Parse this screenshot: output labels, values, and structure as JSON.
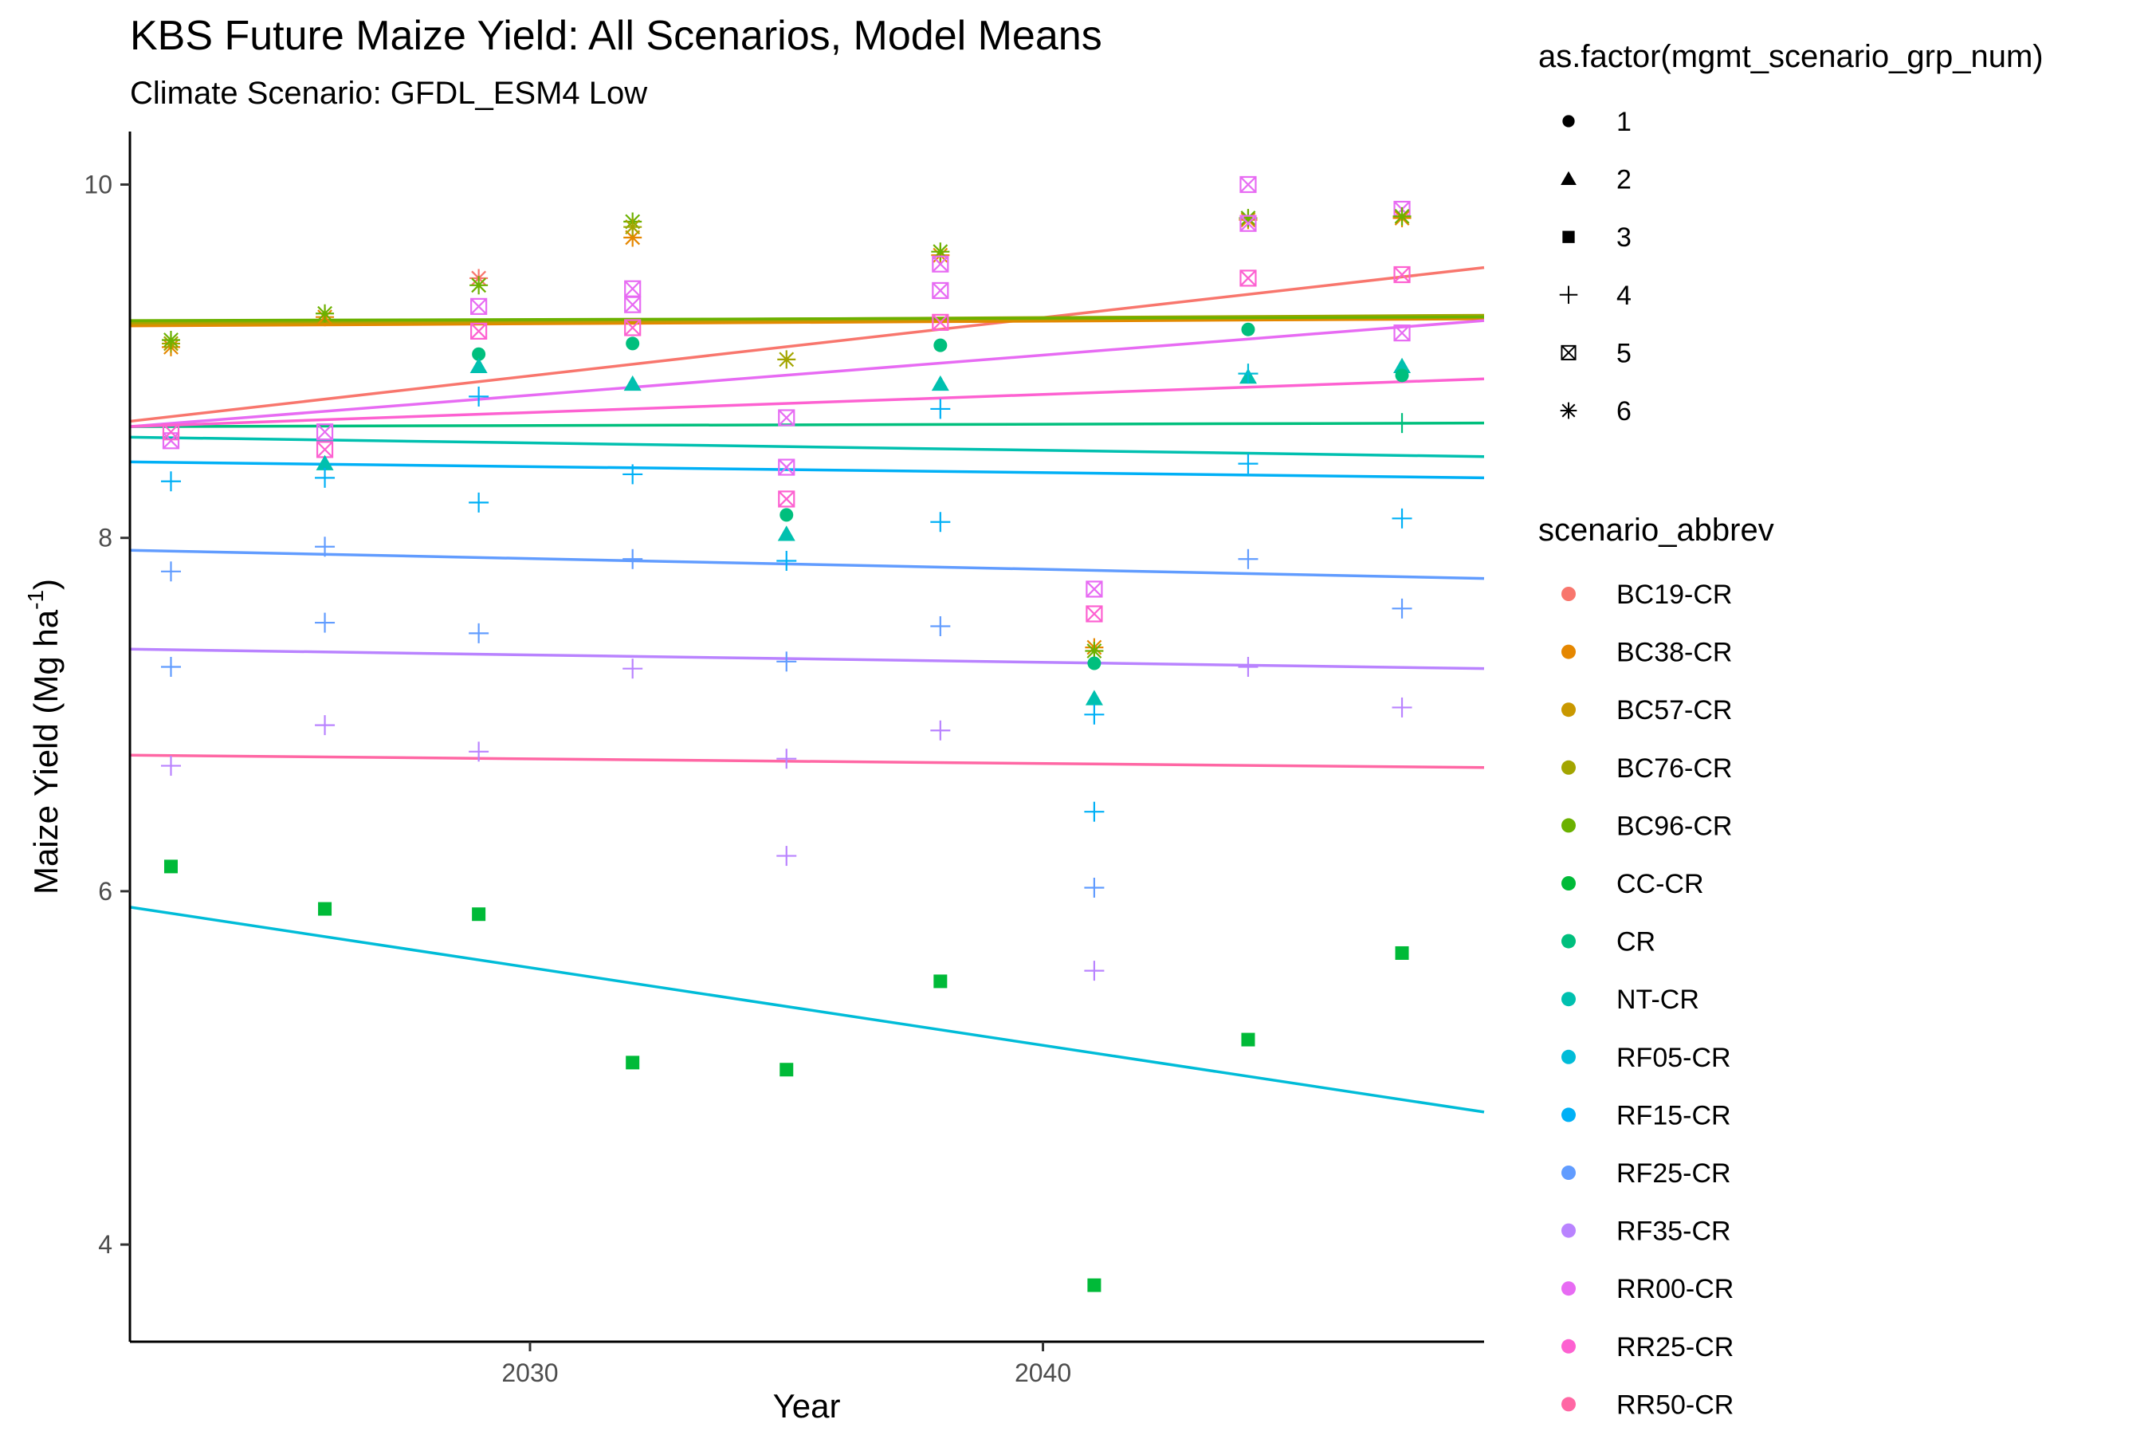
{
  "chart_data": {
    "type": "scatter",
    "title": "KBS  Future Maize Yield: All Scenarios, Model Means",
    "subtitle": "Climate Scenario: GFDL_ESM4 Low",
    "xlabel": "Year",
    "ylabel_main": "Maize Yield (Mg ha",
    "ylabel_sup": "-1",
    "ylabel_close": ")",
    "xlim": [
      2022.2,
      2048.6
    ],
    "ylim": [
      3.45,
      10.3
    ],
    "xticks": [
      2030,
      2040
    ],
    "yticks": [
      4,
      6,
      8,
      10
    ],
    "grid": false,
    "legend_position": "right",
    "shape_legend": {
      "title": "as.factor(mgmt_scenario_grp_num)",
      "items": [
        {
          "label": "1",
          "shape": "circle"
        },
        {
          "label": "2",
          "shape": "triangle"
        },
        {
          "label": "3",
          "shape": "square"
        },
        {
          "label": "4",
          "shape": "plus"
        },
        {
          "label": "5",
          "shape": "boxx"
        },
        {
          "label": "6",
          "shape": "asterisk"
        }
      ]
    },
    "color_legend": {
      "title": "scenario_abbrev",
      "items": [
        {
          "label": "BC19-CR",
          "color": "#F8766D"
        },
        {
          "label": "BC38-CR",
          "color": "#E58700"
        },
        {
          "label": "BC57-CR",
          "color": "#C99800"
        },
        {
          "label": "BC76-CR",
          "color": "#A3A500"
        },
        {
          "label": "BC96-CR",
          "color": "#6BB100"
        },
        {
          "label": "CC-CR",
          "color": "#00BA38"
        },
        {
          "label": "CR",
          "color": "#00BF7D"
        },
        {
          "label": "NT-CR",
          "color": "#00C0AF"
        },
        {
          "label": "RF05-CR",
          "color": "#00BCD8"
        },
        {
          "label": "RF15-CR",
          "color": "#00B0F6"
        },
        {
          "label": "RF25-CR",
          "color": "#619CFF"
        },
        {
          "label": "RF35-CR",
          "color": "#B983FF"
        },
        {
          "label": "RR00-CR",
          "color": "#E76BF3"
        },
        {
          "label": "RR25-CR",
          "color": "#FD61D1"
        },
        {
          "label": "RR50-CR",
          "color": "#FF67A4"
        }
      ]
    },
    "trend_lines": [
      {
        "color": "#F8766D",
        "x": [
          2022.2,
          2048.6
        ],
        "y": [
          8.66,
          9.53
        ]
      },
      {
        "color": "#E58700",
        "x": [
          2022.2,
          2048.6
        ],
        "y": [
          9.2,
          9.24
        ]
      },
      {
        "color": "#C99800",
        "x": [
          2022.2,
          2048.6
        ],
        "y": [
          9.21,
          9.25
        ]
      },
      {
        "color": "#A3A500",
        "x": [
          2022.2,
          2048.6
        ],
        "y": [
          9.22,
          9.26
        ]
      },
      {
        "color": "#6BB100",
        "x": [
          2022.2,
          2048.6
        ],
        "y": [
          9.23,
          9.25
        ]
      },
      {
        "color": "#00BCD8",
        "x": [
          2022.2,
          2048.6
        ],
        "y": [
          5.91,
          4.75
        ]
      },
      {
        "color": "#00BF7D",
        "x": [
          2022.2,
          2048.6
        ],
        "y": [
          8.63,
          8.65
        ]
      },
      {
        "color": "#00C0AF",
        "x": [
          2022.2,
          2048.6
        ],
        "y": [
          8.57,
          8.46
        ]
      },
      {
        "color": "#00B0F6",
        "x": [
          2022.2,
          2048.6
        ],
        "y": [
          8.43,
          8.34
        ]
      },
      {
        "color": "#619CFF",
        "x": [
          2022.2,
          2048.6
        ],
        "y": [
          7.93,
          7.77
        ]
      },
      {
        "color": "#B983FF",
        "x": [
          2022.2,
          2048.6
        ],
        "y": [
          7.37,
          7.26
        ]
      },
      {
        "color": "#E76BF3",
        "x": [
          2022.2,
          2048.6
        ],
        "y": [
          8.63,
          9.23
        ]
      },
      {
        "color": "#FD61D1",
        "x": [
          2022.2,
          2048.6
        ],
        "y": [
          8.63,
          8.9
        ]
      },
      {
        "color": "#FF67A4",
        "x": [
          2022.2,
          2048.6
        ],
        "y": [
          6.77,
          6.7
        ]
      }
    ],
    "points": [
      {
        "x": 2023,
        "y": 9.08,
        "shape": "asterisk",
        "color": "#E58700"
      },
      {
        "x": 2023,
        "y": 9.1,
        "shape": "asterisk",
        "color": "#A3A500"
      },
      {
        "x": 2023,
        "y": 9.12,
        "shape": "asterisk",
        "color": "#6BB100"
      },
      {
        "x": 2023,
        "y": 8.55,
        "shape": "boxx",
        "color": "#E76BF3"
      },
      {
        "x": 2023,
        "y": 8.6,
        "shape": "boxx",
        "color": "#FD61D1"
      },
      {
        "x": 2023,
        "y": 8.32,
        "shape": "plus",
        "color": "#00B0F6"
      },
      {
        "x": 2023,
        "y": 7.81,
        "shape": "plus",
        "color": "#619CFF"
      },
      {
        "x": 2023,
        "y": 7.27,
        "shape": "plus",
        "color": "#619CFF"
      },
      {
        "x": 2023,
        "y": 6.71,
        "shape": "plus",
        "color": "#B983FF"
      },
      {
        "x": 2023,
        "y": 6.14,
        "shape": "square",
        "color": "#00BA38"
      },
      {
        "x": 2026,
        "y": 9.25,
        "shape": "asterisk",
        "color": "#E58700"
      },
      {
        "x": 2026,
        "y": 9.27,
        "shape": "asterisk",
        "color": "#6BB100"
      },
      {
        "x": 2026,
        "y": 8.6,
        "shape": "boxx",
        "color": "#E76BF3"
      },
      {
        "x": 2026,
        "y": 8.5,
        "shape": "boxx",
        "color": "#FD61D1"
      },
      {
        "x": 2026,
        "y": 8.42,
        "shape": "triangle",
        "color": "#00C0AF"
      },
      {
        "x": 2026,
        "y": 8.34,
        "shape": "plus",
        "color": "#00B0F6"
      },
      {
        "x": 2026,
        "y": 7.95,
        "shape": "plus",
        "color": "#619CFF"
      },
      {
        "x": 2026,
        "y": 7.52,
        "shape": "plus",
        "color": "#619CFF"
      },
      {
        "x": 2026,
        "y": 6.94,
        "shape": "plus",
        "color": "#B983FF"
      },
      {
        "x": 2026,
        "y": 5.9,
        "shape": "square",
        "color": "#00BA38"
      },
      {
        "x": 2029,
        "y": 9.47,
        "shape": "asterisk",
        "color": "#F8766D"
      },
      {
        "x": 2029,
        "y": 9.43,
        "shape": "asterisk",
        "color": "#6BB100"
      },
      {
        "x": 2029,
        "y": 9.31,
        "shape": "boxx",
        "color": "#E76BF3"
      },
      {
        "x": 2029,
        "y": 9.17,
        "shape": "boxx",
        "color": "#FD61D1"
      },
      {
        "x": 2029,
        "y": 9.04,
        "shape": "circle",
        "color": "#00BF7D"
      },
      {
        "x": 2029,
        "y": 8.97,
        "shape": "triangle",
        "color": "#00C0AF"
      },
      {
        "x": 2029,
        "y": 8.8,
        "shape": "plus",
        "color": "#00B0F6"
      },
      {
        "x": 2029,
        "y": 8.2,
        "shape": "plus",
        "color": "#00B0F6"
      },
      {
        "x": 2029,
        "y": 7.46,
        "shape": "plus",
        "color": "#619CFF"
      },
      {
        "x": 2029,
        "y": 6.79,
        "shape": "plus",
        "color": "#B983FF"
      },
      {
        "x": 2029,
        "y": 5.87,
        "shape": "square",
        "color": "#00BA38"
      },
      {
        "x": 2032,
        "y": 9.79,
        "shape": "asterisk",
        "color": "#6BB100"
      },
      {
        "x": 2032,
        "y": 9.7,
        "shape": "asterisk",
        "color": "#E58700"
      },
      {
        "x": 2032,
        "y": 9.76,
        "shape": "asterisk",
        "color": "#A3A500"
      },
      {
        "x": 2032,
        "y": 9.41,
        "shape": "boxx",
        "color": "#E76BF3"
      },
      {
        "x": 2032,
        "y": 9.32,
        "shape": "boxx",
        "color": "#E76BF3"
      },
      {
        "x": 2032,
        "y": 9.19,
        "shape": "boxx",
        "color": "#FD61D1"
      },
      {
        "x": 2032,
        "y": 9.1,
        "shape": "circle",
        "color": "#00BF7D"
      },
      {
        "x": 2032,
        "y": 8.87,
        "shape": "triangle",
        "color": "#00C0AF"
      },
      {
        "x": 2032,
        "y": 8.36,
        "shape": "plus",
        "color": "#00B0F6"
      },
      {
        "x": 2032,
        "y": 7.88,
        "shape": "plus",
        "color": "#619CFF"
      },
      {
        "x": 2032,
        "y": 7.26,
        "shape": "plus",
        "color": "#B983FF"
      },
      {
        "x": 2032,
        "y": 5.03,
        "shape": "square",
        "color": "#00BA38"
      },
      {
        "x": 2035,
        "y": 9.01,
        "shape": "asterisk",
        "color": "#A3A500"
      },
      {
        "x": 2035,
        "y": 8.68,
        "shape": "boxx",
        "color": "#E76BF3"
      },
      {
        "x": 2035,
        "y": 8.4,
        "shape": "boxx",
        "color": "#E76BF3"
      },
      {
        "x": 2035,
        "y": 8.22,
        "shape": "boxx",
        "color": "#FD61D1"
      },
      {
        "x": 2035,
        "y": 8.13,
        "shape": "circle",
        "color": "#00BF7D"
      },
      {
        "x": 2035,
        "y": 8.02,
        "shape": "triangle",
        "color": "#00C0AF"
      },
      {
        "x": 2035,
        "y": 7.87,
        "shape": "plus",
        "color": "#00B0F6"
      },
      {
        "x": 2035,
        "y": 7.3,
        "shape": "plus",
        "color": "#619CFF"
      },
      {
        "x": 2035,
        "y": 6.75,
        "shape": "plus",
        "color": "#B983FF"
      },
      {
        "x": 2035,
        "y": 6.2,
        "shape": "plus",
        "color": "#B983FF"
      },
      {
        "x": 2035,
        "y": 4.99,
        "shape": "square",
        "color": "#00BA38"
      },
      {
        "x": 2038,
        "y": 9.6,
        "shape": "asterisk",
        "color": "#E58700"
      },
      {
        "x": 2038,
        "y": 9.62,
        "shape": "asterisk",
        "color": "#6BB100"
      },
      {
        "x": 2038,
        "y": 9.55,
        "shape": "boxx",
        "color": "#E76BF3"
      },
      {
        "x": 2038,
        "y": 9.4,
        "shape": "boxx",
        "color": "#E76BF3"
      },
      {
        "x": 2038,
        "y": 9.22,
        "shape": "boxx",
        "color": "#FD61D1"
      },
      {
        "x": 2038,
        "y": 9.09,
        "shape": "circle",
        "color": "#00BF7D"
      },
      {
        "x": 2038,
        "y": 8.87,
        "shape": "triangle",
        "color": "#00C0AF"
      },
      {
        "x": 2038,
        "y": 8.73,
        "shape": "plus",
        "color": "#00B0F6"
      },
      {
        "x": 2038,
        "y": 8.09,
        "shape": "plus",
        "color": "#00B0F6"
      },
      {
        "x": 2038,
        "y": 7.5,
        "shape": "plus",
        "color": "#619CFF"
      },
      {
        "x": 2038,
        "y": 6.91,
        "shape": "plus",
        "color": "#B983FF"
      },
      {
        "x": 2038,
        "y": 5.49,
        "shape": "square",
        "color": "#00BA38"
      },
      {
        "x": 2041,
        "y": 7.71,
        "shape": "boxx",
        "color": "#E76BF3"
      },
      {
        "x": 2041,
        "y": 7.57,
        "shape": "boxx",
        "color": "#FD61D1"
      },
      {
        "x": 2041,
        "y": 7.38,
        "shape": "asterisk",
        "color": "#E58700"
      },
      {
        "x": 2041,
        "y": 7.36,
        "shape": "asterisk",
        "color": "#6BB100"
      },
      {
        "x": 2041,
        "y": 7.29,
        "shape": "circle",
        "color": "#00BF7D"
      },
      {
        "x": 2041,
        "y": 7.09,
        "shape": "triangle",
        "color": "#00C0AF"
      },
      {
        "x": 2041,
        "y": 7.0,
        "shape": "plus",
        "color": "#00B0F6"
      },
      {
        "x": 2041,
        "y": 6.45,
        "shape": "plus",
        "color": "#00B0F6"
      },
      {
        "x": 2041,
        "y": 6.02,
        "shape": "plus",
        "color": "#619CFF"
      },
      {
        "x": 2041,
        "y": 5.55,
        "shape": "plus",
        "color": "#B983FF"
      },
      {
        "x": 2041,
        "y": 3.77,
        "shape": "square",
        "color": "#00BA38"
      },
      {
        "x": 2044,
        "y": 10.0,
        "shape": "boxx",
        "color": "#E76BF3"
      },
      {
        "x": 2044,
        "y": 9.8,
        "shape": "asterisk",
        "color": "#E58700"
      },
      {
        "x": 2044,
        "y": 9.81,
        "shape": "asterisk",
        "color": "#6BB100"
      },
      {
        "x": 2044,
        "y": 9.78,
        "shape": "boxx",
        "color": "#E76BF3"
      },
      {
        "x": 2044,
        "y": 9.47,
        "shape": "boxx",
        "color": "#FD61D1"
      },
      {
        "x": 2044,
        "y": 9.18,
        "shape": "circle",
        "color": "#00BF7D"
      },
      {
        "x": 2044,
        "y": 8.91,
        "shape": "triangle",
        "color": "#00C0AF"
      },
      {
        "x": 2044,
        "y": 8.93,
        "shape": "plus",
        "color": "#00BCD8"
      },
      {
        "x": 2044,
        "y": 8.42,
        "shape": "plus",
        "color": "#00B0F6"
      },
      {
        "x": 2044,
        "y": 7.88,
        "shape": "plus",
        "color": "#619CFF"
      },
      {
        "x": 2044,
        "y": 7.27,
        "shape": "plus",
        "color": "#B983FF"
      },
      {
        "x": 2044,
        "y": 5.16,
        "shape": "square",
        "color": "#00BA38"
      },
      {
        "x": 2047,
        "y": 9.86,
        "shape": "boxx",
        "color": "#E76BF3"
      },
      {
        "x": 2047,
        "y": 9.81,
        "shape": "asterisk",
        "color": "#E58700"
      },
      {
        "x": 2047,
        "y": 9.82,
        "shape": "asterisk",
        "color": "#6BB100"
      },
      {
        "x": 2047,
        "y": 9.49,
        "shape": "boxx",
        "color": "#FD61D1"
      },
      {
        "x": 2047,
        "y": 9.16,
        "shape": "boxx",
        "color": "#E76BF3"
      },
      {
        "x": 2047,
        "y": 8.97,
        "shape": "triangle",
        "color": "#00C0AF"
      },
      {
        "x": 2047,
        "y": 8.92,
        "shape": "circle",
        "color": "#00BF7D"
      },
      {
        "x": 2047,
        "y": 8.65,
        "shape": "plus",
        "color": "#00BF7D"
      },
      {
        "x": 2047,
        "y": 8.11,
        "shape": "plus",
        "color": "#00B0F6"
      },
      {
        "x": 2047,
        "y": 7.6,
        "shape": "plus",
        "color": "#619CFF"
      },
      {
        "x": 2047,
        "y": 7.04,
        "shape": "plus",
        "color": "#B983FF"
      },
      {
        "x": 2047,
        "y": 5.65,
        "shape": "square",
        "color": "#00BA38"
      }
    ]
  }
}
